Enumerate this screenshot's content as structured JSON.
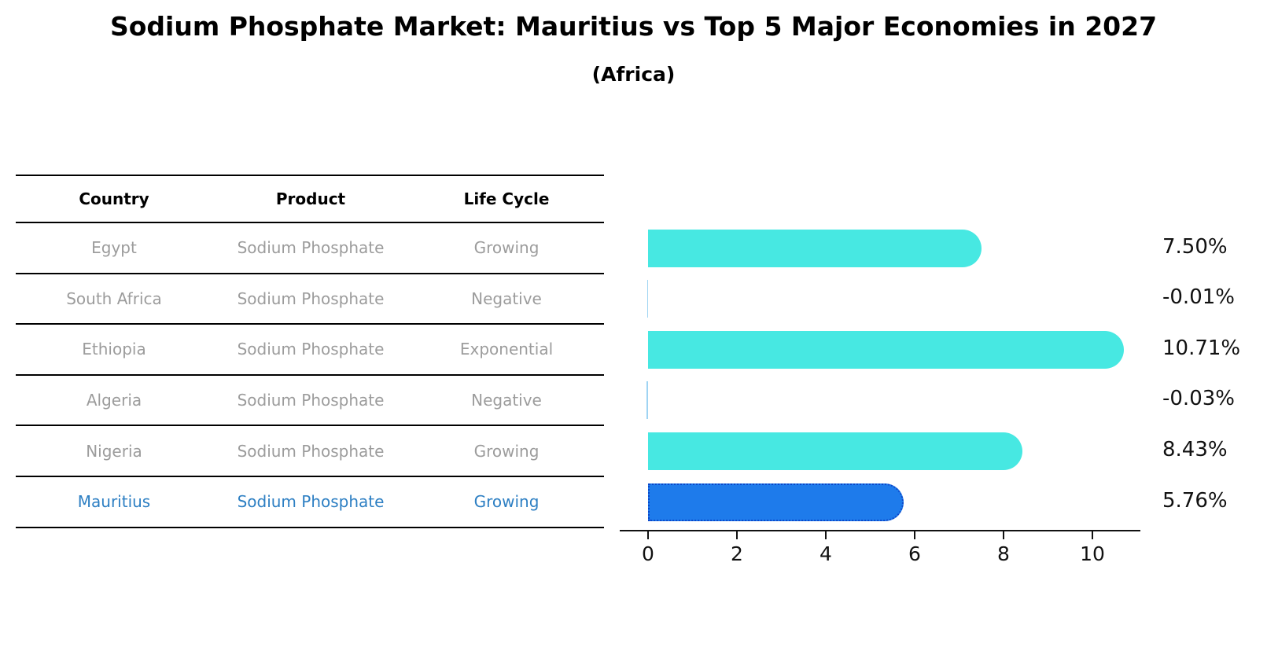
{
  "title": "Sodium Phosphate Market: Mauritius vs Top 5 Major Economies in 2027",
  "subtitle": "(Africa)",
  "table": {
    "headers": [
      "Country",
      "Product",
      "Life Cycle"
    ],
    "rows": [
      {
        "country": "Egypt",
        "product": "Sodium Phosphate",
        "life_cycle": "Growing",
        "highlight": false
      },
      {
        "country": "South Africa",
        "product": "Sodium Phosphate",
        "life_cycle": "Negative",
        "highlight": false
      },
      {
        "country": "Ethiopia",
        "product": "Sodium Phosphate",
        "life_cycle": "Exponential",
        "highlight": false
      },
      {
        "country": "Algeria",
        "product": "Sodium Phosphate",
        "life_cycle": "Negative",
        "highlight": false
      },
      {
        "country": "Nigeria",
        "product": "Sodium Phosphate",
        "life_cycle": "Growing",
        "highlight": false
      },
      {
        "country": "Mauritius",
        "product": "Sodium Phosphate",
        "life_cycle": "Growing",
        "highlight": true
      }
    ]
  },
  "chart_data": {
    "type": "bar",
    "orientation": "horizontal",
    "title": "Sodium Phosphate Market: Mauritius vs Top 5 Major Economies in 2027 (Africa)",
    "categories": [
      "Egypt",
      "South Africa",
      "Ethiopia",
      "Algeria",
      "Nigeria",
      "Mauritius"
    ],
    "values": [
      7.5,
      -0.01,
      10.71,
      -0.03,
      8.43,
      5.76
    ],
    "value_labels": [
      "7.50%",
      "-0.01%",
      "10.71%",
      "-0.03%",
      "8.43%",
      "5.76%"
    ],
    "x_ticks": [
      0,
      2,
      4,
      6,
      8,
      10
    ],
    "xlim": [
      -0.6,
      11.1
    ],
    "grid": false,
    "legend": "none",
    "highlight_category": "Mauritius",
    "colors": {
      "bar": "#47e8e2",
      "highlight_bar": "#1e7beb",
      "highlight_border": "#0d47c9",
      "negative_bar": "#9fd4f3",
      "highlight_text": "#2d7fc3",
      "row_text": "#9c9c9c",
      "axis": "#111111"
    }
  }
}
